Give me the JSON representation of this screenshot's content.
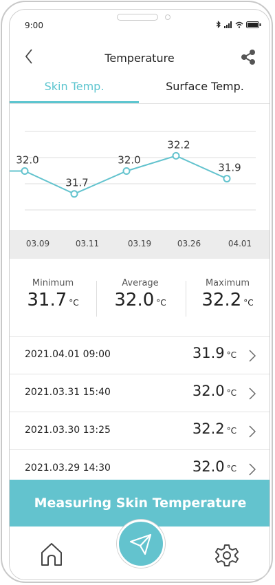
{
  "status_bar": {
    "time": "9:00"
  },
  "header": {
    "title": "Temperature"
  },
  "tabs": [
    {
      "label": "Skin Temp.",
      "active": true
    },
    {
      "label": "Surface Temp.",
      "active": false
    }
  ],
  "chart_data": {
    "type": "line",
    "categories": [
      "03.09",
      "03.11",
      "03.19",
      "03.26",
      "04.01"
    ],
    "values": [
      32.0,
      31.7,
      32.0,
      32.2,
      31.9
    ],
    "data_labels": [
      "32.0",
      "31.7",
      "32.0",
      "32.2",
      "31.9"
    ],
    "ylim": [
      31.3,
      32.7
    ],
    "grid": true,
    "colors": {
      "line": "#63c3ce",
      "grid": "#dddddd"
    }
  },
  "stats": [
    {
      "label": "Minimum",
      "value": "31.7",
      "unit": "°C"
    },
    {
      "label": "Average",
      "value": "32.0",
      "unit": "°C"
    },
    {
      "label": "Maximum",
      "value": "32.2",
      "unit": "°C"
    }
  ],
  "records": [
    {
      "datetime": "2021.04.01 09:00",
      "value": "31.9",
      "unit": "°C"
    },
    {
      "datetime": "2021.03.31 15:40",
      "value": "32.0",
      "unit": "°C"
    },
    {
      "datetime": "2021.03.30 13:25",
      "value": "32.2",
      "unit": "°C"
    },
    {
      "datetime": "2021.03.29 14:30",
      "value": "32.0",
      "unit": "°C"
    }
  ],
  "action": {
    "label": "Measuring Skin Temperature"
  },
  "nav": {
    "home_icon": "home-icon",
    "center_icon": "paper-plane-icon",
    "settings_icon": "gear-icon"
  },
  "colors": {
    "accent": "#63c3ce",
    "text": "#222222"
  }
}
